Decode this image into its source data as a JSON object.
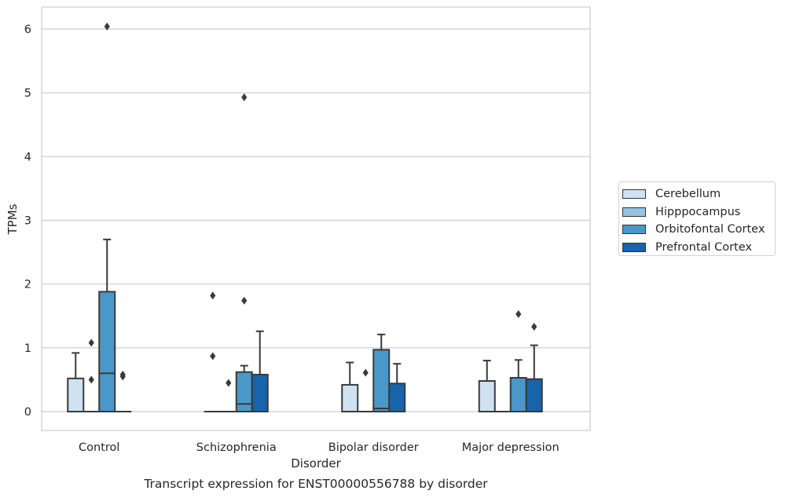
{
  "chart_data": {
    "type": "box",
    "categories": [
      "Control",
      "Schizophrenia",
      "Bipolar disorder",
      "Major depression"
    ],
    "xlabel": "Disorder",
    "ylabel": "TPMs",
    "caption": "Transcript expression for ENST00000556788 by disorder",
    "ylim": [
      -0.3,
      6.35
    ],
    "yticks": [
      0,
      1,
      2,
      3,
      4,
      5,
      6
    ],
    "grid": true,
    "legend_position": "right",
    "series": [
      {
        "name": "Cerebellum",
        "color": "#d0e1f2",
        "boxes": [
          {
            "q1": 0,
            "median": 0,
            "q3": 0.52,
            "whisker_low": 0,
            "whisker_high": 0.92,
            "outliers": []
          },
          {
            "q1": 0,
            "median": 0,
            "q3": 0,
            "whisker_low": 0,
            "whisker_high": 0,
            "outliers": [
              0.87,
              1.82
            ]
          },
          {
            "q1": 0,
            "median": 0,
            "q3": 0.42,
            "whisker_low": 0,
            "whisker_high": 0.77,
            "outliers": []
          },
          {
            "q1": 0,
            "median": 0,
            "q3": 0.48,
            "whisker_low": 0,
            "whisker_high": 0.8,
            "outliers": []
          }
        ]
      },
      {
        "name": "Hipppocampus",
        "color": "#94c4df",
        "boxes": [
          {
            "q1": 0,
            "median": 0,
            "q3": 0,
            "whisker_low": 0,
            "whisker_high": 0,
            "outliers": [
              0.5,
              1.08
            ]
          },
          {
            "q1": 0,
            "median": 0,
            "q3": 0,
            "whisker_low": 0,
            "whisker_high": 0,
            "outliers": [
              0.45
            ]
          },
          {
            "q1": 0,
            "median": 0,
            "q3": 0,
            "whisker_low": 0,
            "whisker_high": 0,
            "outliers": [
              0.61
            ]
          },
          {
            "q1": 0,
            "median": 0,
            "q3": 0,
            "whisker_low": 0,
            "whisker_high": 0,
            "outliers": []
          }
        ]
      },
      {
        "name": "Orbitofontal Cortex",
        "color": "#4a98c9",
        "boxes": [
          {
            "q1": 0,
            "median": 0.6,
            "q3": 1.88,
            "whisker_low": 0,
            "whisker_high": 2.7,
            "outliers": [
              6.04
            ]
          },
          {
            "q1": 0,
            "median": 0.12,
            "q3": 0.62,
            "whisker_low": 0,
            "whisker_high": 0.72,
            "outliers": [
              1.74,
              4.93
            ]
          },
          {
            "q1": 0,
            "median": 0.05,
            "q3": 0.97,
            "whisker_low": 0,
            "whisker_high": 1.21,
            "outliers": []
          },
          {
            "q1": 0,
            "median": 0,
            "q3": 0.53,
            "whisker_low": 0,
            "whisker_high": 0.81,
            "outliers": [
              1.53
            ]
          }
        ]
      },
      {
        "name": "Prefrontal Cortex",
        "color": "#1764ab",
        "boxes": [
          {
            "q1": 0,
            "median": 0,
            "q3": 0,
            "whisker_low": 0,
            "whisker_high": 0,
            "outliers": [
              0.55,
              0.58
            ]
          },
          {
            "q1": 0,
            "median": 0,
            "q3": 0.58,
            "whisker_low": 0,
            "whisker_high": 1.26,
            "outliers": []
          },
          {
            "q1": 0,
            "median": 0,
            "q3": 0.44,
            "whisker_low": 0,
            "whisker_high": 0.75,
            "outliers": []
          },
          {
            "q1": 0,
            "median": 0,
            "q3": 0.51,
            "whisker_low": 0,
            "whisker_high": 1.04,
            "outliers": [
              1.33
            ]
          }
        ]
      }
    ]
  }
}
